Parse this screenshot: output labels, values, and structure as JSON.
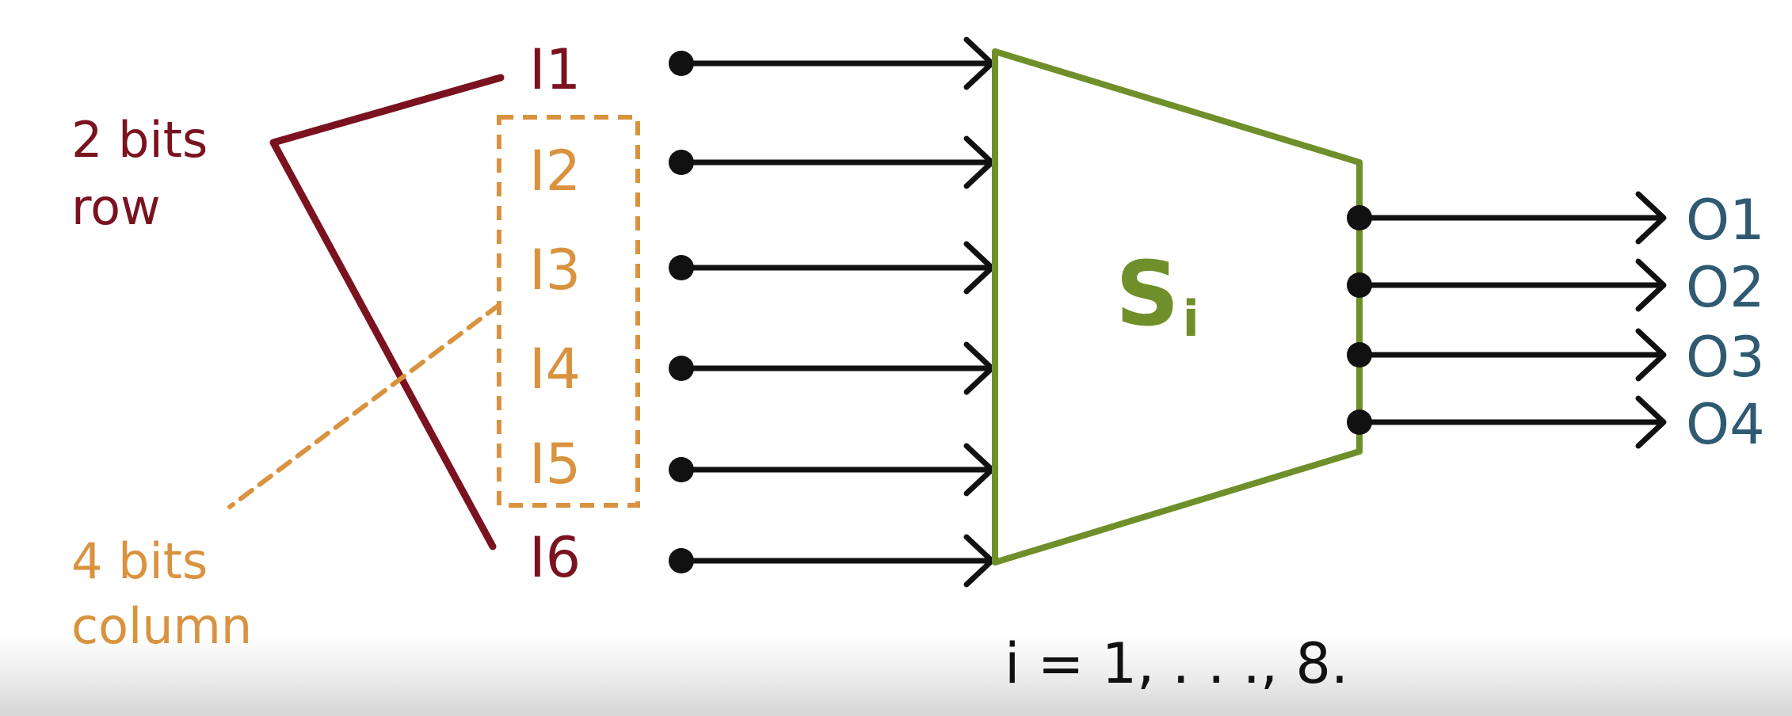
{
  "diagram": {
    "box_label": "S",
    "box_label_sub": "i",
    "inputs": [
      "I1",
      "I2",
      "I3",
      "I4",
      "I5",
      "I6"
    ],
    "outputs": [
      "O1",
      "O2",
      "O3",
      "O4"
    ],
    "row_note": {
      "line1": "2 bits",
      "line2": "row"
    },
    "column_note": {
      "line1": "4 bits",
      "line2": "column"
    },
    "caption": "i = 1, . . ., 8."
  },
  "colors": {
    "row": "#7a1220",
    "column": "#d9933f",
    "box": "#6e8f2a",
    "outputs": "#2f5a72",
    "arrows": "#111111"
  }
}
